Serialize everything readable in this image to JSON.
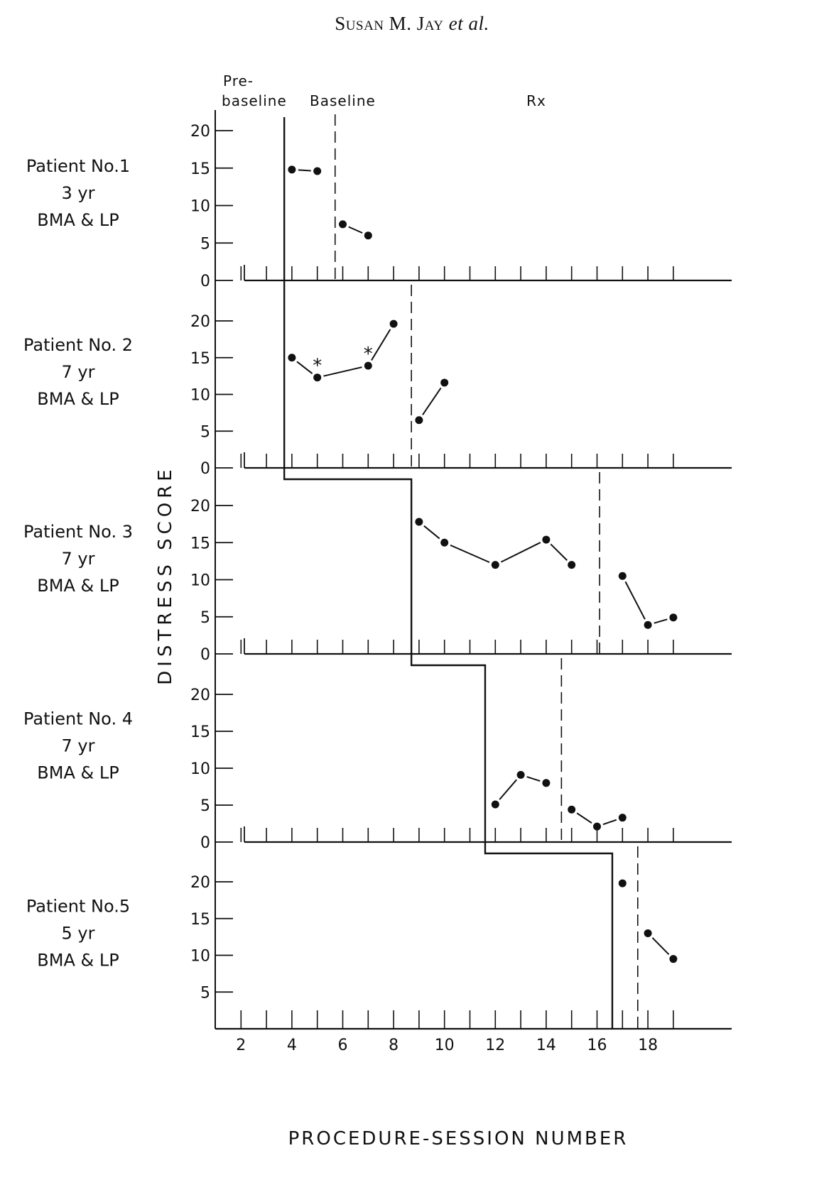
{
  "header": {
    "author": "Susan M. Jay",
    "etal": "et al."
  },
  "chart_data": {
    "type": "line",
    "xlabel": "PROCEDURE-SESSION NUMBER",
    "ylabel": "DISTRESS SCORE",
    "x_tick_labels": [
      2,
      4,
      6,
      8,
      10,
      12,
      14,
      16,
      18
    ],
    "xlim": [
      1,
      20
    ],
    "ylim": [
      0,
      20
    ],
    "y_ticks": [
      0,
      5,
      10,
      15,
      20
    ],
    "phase_labels": {
      "prebaseline": [
        "Pre-",
        "baseline"
      ],
      "baseline": "Baseline",
      "rx": "Rx"
    },
    "panels": [
      {
        "patient": "Patient No.1",
        "age": "3 yr",
        "procedure": "BMA & LP",
        "baseline_start": 3.7,
        "rx_start": 5.7,
        "segments": [
          [
            [
              4,
              14.8
            ],
            [
              5,
              14.6
            ]
          ],
          [
            [
              6,
              7.5
            ],
            [
              7,
              6
            ]
          ]
        ],
        "starred": []
      },
      {
        "patient": "Patient No. 2",
        "age": "7 yr",
        "procedure": "BMA & LP",
        "baseline_start": 3.7,
        "rx_start": 8.7,
        "segments": [
          [
            [
              4,
              15
            ],
            [
              5,
              12.3
            ],
            [
              7,
              13.9
            ],
            [
              8,
              19.6
            ]
          ],
          [
            [
              9,
              6.5
            ],
            [
              10,
              11.6
            ]
          ]
        ],
        "starred": [
          5,
          7
        ]
      },
      {
        "patient": "Patient No. 3",
        "age": "7 yr",
        "procedure": "BMA & LP",
        "baseline_start": 8.7,
        "rx_start": 16.1,
        "segments": [
          [
            [
              9,
              17.8
            ],
            [
              10,
              15
            ],
            [
              12,
              12
            ],
            [
              14,
              15.4
            ],
            [
              15,
              12
            ]
          ],
          [
            [
              17,
              10.5
            ],
            [
              18,
              3.9
            ],
            [
              19,
              4.9
            ]
          ]
        ],
        "starred": []
      },
      {
        "patient": "Patient No. 4",
        "age": "7 yr",
        "procedure": "BMA & LP",
        "baseline_start": 11.6,
        "rx_start": 14.6,
        "segments": [
          [
            [
              12,
              5.1
            ],
            [
              13,
              9.1
            ],
            [
              14,
              8
            ]
          ],
          [
            [
              15,
              4.4
            ],
            [
              16,
              2.1
            ],
            [
              17,
              3.3
            ]
          ]
        ],
        "starred": []
      },
      {
        "patient": "Patient No.5",
        "age": "5 yr",
        "procedure": "BMA & LP",
        "baseline_start": 16.6,
        "rx_start": 17.6,
        "segments": [
          [
            [
              17,
              19.8
            ]
          ],
          [
            [
              18,
              13
            ],
            [
              19,
              9.5
            ]
          ]
        ],
        "starred": []
      }
    ]
  }
}
